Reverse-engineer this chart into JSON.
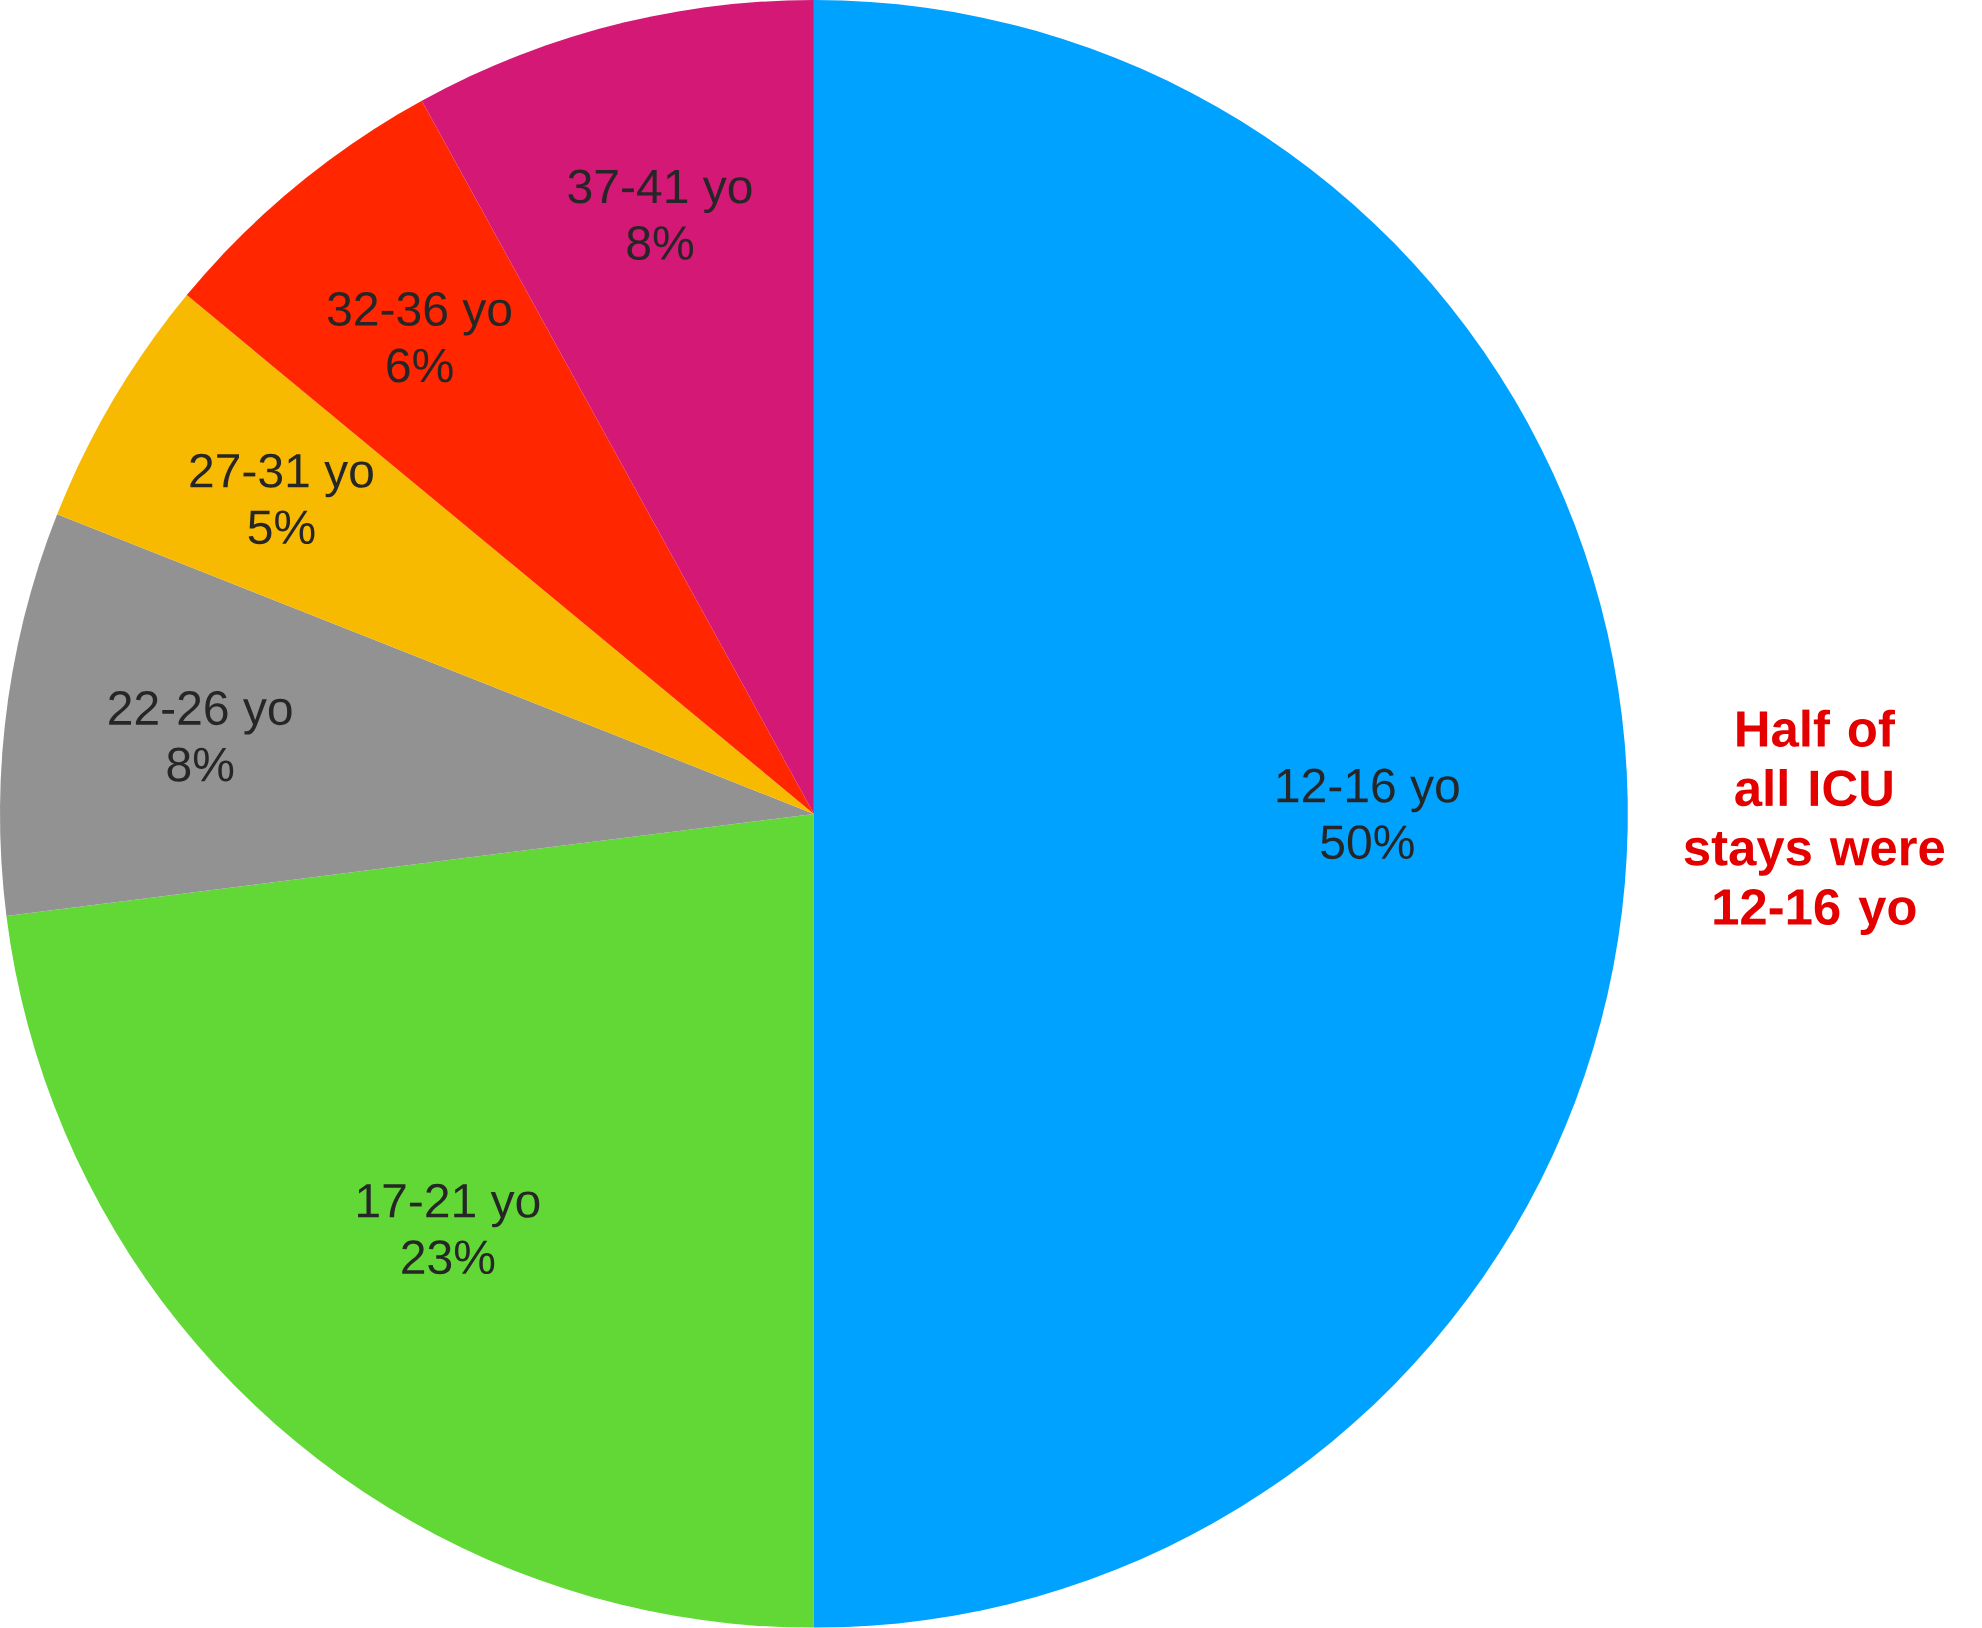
{
  "chart_data": {
    "type": "pie",
    "categories": [
      "12-16 yo",
      "17-21 yo",
      "22-26 yo",
      "27-31 yo",
      "32-36 yo",
      "37-41 yo"
    ],
    "values": [
      50,
      23,
      8,
      5,
      6,
      8
    ],
    "value_labels": [
      "50%",
      "23%",
      "8%",
      "5%",
      "6%",
      "8%"
    ],
    "colors": [
      "#00a2ff",
      "#61d836",
      "#929292",
      "#f8ba00",
      "#ff2600",
      "#d41876"
    ],
    "annotations": [
      "Half of all ICU stays were 12-16 yo"
    ]
  }
}
